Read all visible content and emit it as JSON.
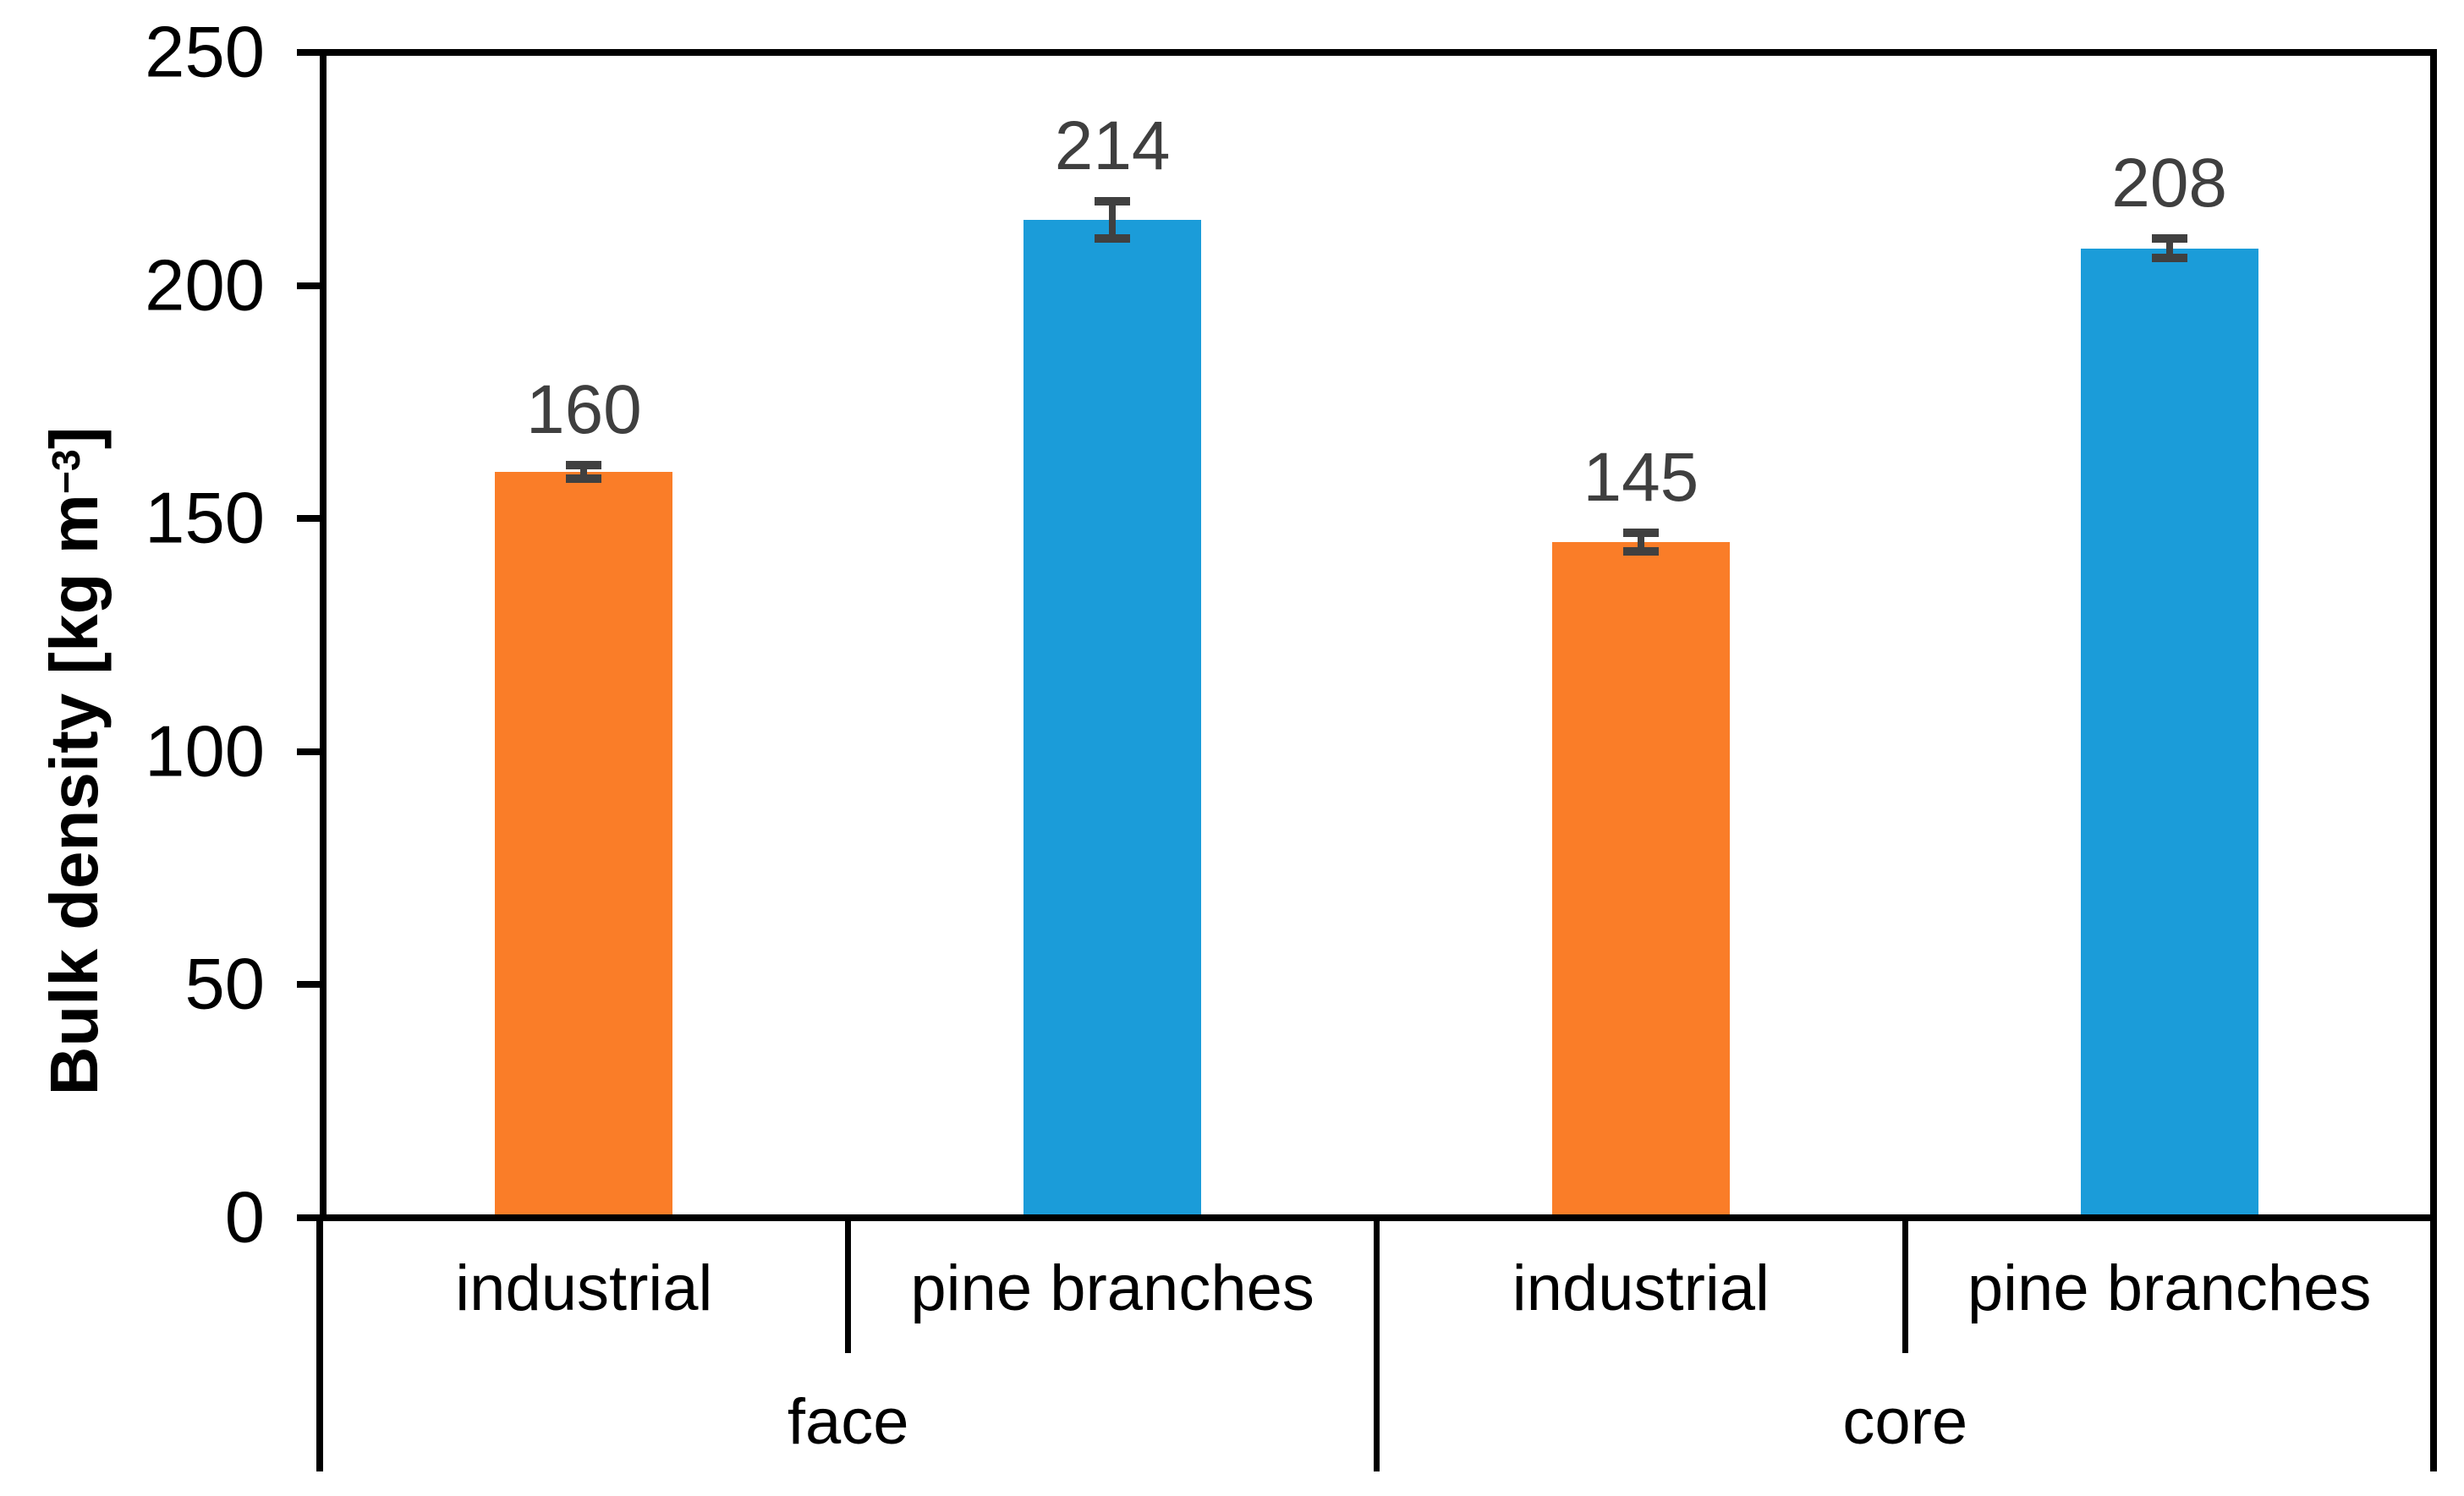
{
  "chart_data": {
    "type": "bar",
    "title": "",
    "ylabel": "Bulk density [kg m−3]",
    "ylabel_parts": {
      "prefix": "Bulk density [kg m",
      "superscript": "−3",
      "suffix": "]"
    },
    "ylim": [
      0,
      250
    ],
    "yticks": [
      0,
      50,
      100,
      150,
      200,
      250
    ],
    "grid": false,
    "legend_position": "none",
    "categories_groups": [
      "face",
      "core"
    ],
    "series": [
      {
        "name": "industrial",
        "color": "#FA7D28",
        "values": [
          160,
          145
        ]
      },
      {
        "name": "pine branches",
        "color": "#1B9CD9",
        "values": [
          214,
          208
        ]
      }
    ],
    "bars": [
      {
        "group": "face",
        "category": "industrial",
        "value": 160,
        "label": "160",
        "error": 1.5,
        "color": "#FA7D28"
      },
      {
        "group": "face",
        "category": "pine branches",
        "value": 214,
        "label": "214",
        "error": 4,
        "color": "#1B9CD9"
      },
      {
        "group": "core",
        "category": "industrial",
        "value": 145,
        "label": "145",
        "error": 2,
        "color": "#FA7D28"
      },
      {
        "group": "core",
        "category": "pine branches",
        "value": 208,
        "label": "208",
        "error": 2,
        "color": "#1B9CD9"
      }
    ],
    "error_bar_color": "#404040",
    "data_label_color": "#3F3F3F",
    "axis_color": "#000000"
  }
}
